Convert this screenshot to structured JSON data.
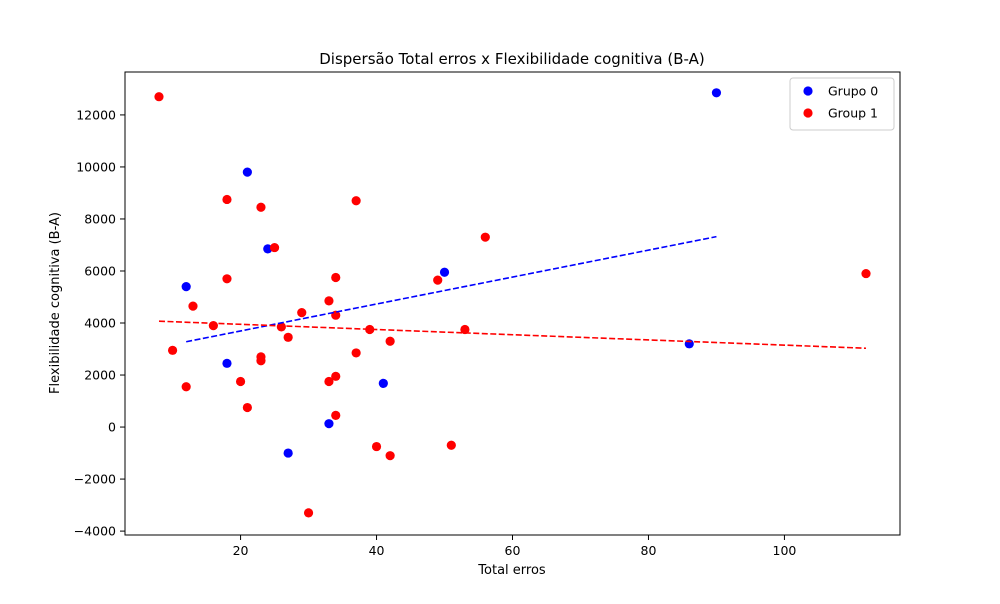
{
  "chart_data": {
    "type": "scatter",
    "title": "Dispersão Total erros x Flexibilidade cognitiva (B-A)",
    "xlabel": "Total erros",
    "ylabel": "Flexibilidade cognitiva (B-A)",
    "xlim": [
      3,
      117
    ],
    "ylim": [
      -4150,
      13650
    ],
    "x_ticks": [
      20,
      40,
      60,
      80,
      100
    ],
    "y_ticks": [
      -4000,
      -2000,
      0,
      2000,
      4000,
      6000,
      8000,
      10000,
      12000
    ],
    "grid": false,
    "legend_position": "top-right",
    "series": [
      {
        "name": "Grupo 0",
        "color": "#0000ff",
        "points": [
          {
            "x": 12,
            "y": 5400
          },
          {
            "x": 18,
            "y": 2450
          },
          {
            "x": 21,
            "y": 9800
          },
          {
            "x": 24,
            "y": 6850
          },
          {
            "x": 27,
            "y": -1000
          },
          {
            "x": 33,
            "y": 130
          },
          {
            "x": 41,
            "y": 1680
          },
          {
            "x": 50,
            "y": 5950
          },
          {
            "x": 86,
            "y": 3200
          },
          {
            "x": 90,
            "y": 12850
          }
        ],
        "trend": {
          "x": [
            12,
            90
          ],
          "y": [
            3280,
            7320
          ]
        }
      },
      {
        "name": "Group 1",
        "color": "#ff0000",
        "points": [
          {
            "x": 8,
            "y": 12700
          },
          {
            "x": 10,
            "y": 2950
          },
          {
            "x": 12,
            "y": 1550
          },
          {
            "x": 13,
            "y": 4650
          },
          {
            "x": 16,
            "y": 3900
          },
          {
            "x": 18,
            "y": 8750
          },
          {
            "x": 18,
            "y": 5700
          },
          {
            "x": 20,
            "y": 1750
          },
          {
            "x": 21,
            "y": 750
          },
          {
            "x": 23,
            "y": 8450
          },
          {
            "x": 23,
            "y": 2700
          },
          {
            "x": 23,
            "y": 2550
          },
          {
            "x": 25,
            "y": 6900
          },
          {
            "x": 26,
            "y": 3850
          },
          {
            "x": 27,
            "y": 3450
          },
          {
            "x": 29,
            "y": 4400
          },
          {
            "x": 30,
            "y": -3300
          },
          {
            "x": 33,
            "y": 4850
          },
          {
            "x": 33,
            "y": 1750
          },
          {
            "x": 34,
            "y": 5750
          },
          {
            "x": 34,
            "y": 4300
          },
          {
            "x": 34,
            "y": 1950
          },
          {
            "x": 34,
            "y": 450
          },
          {
            "x": 37,
            "y": 8700
          },
          {
            "x": 37,
            "y": 2850
          },
          {
            "x": 39,
            "y": 3750
          },
          {
            "x": 40,
            "y": -750
          },
          {
            "x": 42,
            "y": 3300
          },
          {
            "x": 42,
            "y": -1100
          },
          {
            "x": 49,
            "y": 5650
          },
          {
            "x": 51,
            "y": -700
          },
          {
            "x": 53,
            "y": 3750
          },
          {
            "x": 56,
            "y": 7300
          },
          {
            "x": 112,
            "y": 5900
          }
        ],
        "trend": {
          "x": [
            8,
            112
          ],
          "y": [
            4070,
            3030
          ]
        }
      }
    ]
  }
}
